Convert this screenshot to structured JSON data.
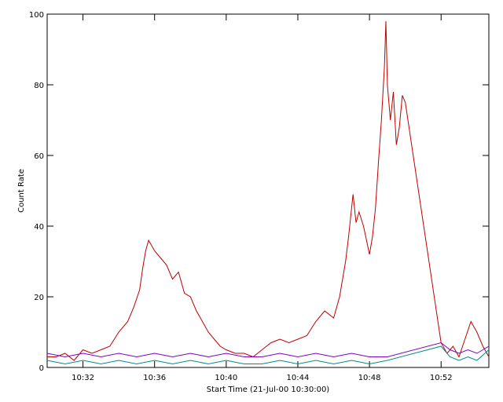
{
  "chart_data": {
    "type": "line",
    "xlabel": "Start Time (21-Jul-00 10:30:00)",
    "ylabel": "Count Rate",
    "xlim": [
      "10:30:00",
      "10:54:40"
    ],
    "ylim": [
      0,
      100
    ],
    "x_ticks": [
      "10:32",
      "10:36",
      "10:40",
      "10:44",
      "10:48",
      "10:52"
    ],
    "y_ticks": [
      0,
      20,
      40,
      60,
      80,
      100
    ],
    "grid": false,
    "legend": "none",
    "series": [
      {
        "color": "#c00000",
        "points": [
          [
            "10:30:00",
            3
          ],
          [
            "10:30:30",
            3
          ],
          [
            "10:31:00",
            4
          ],
          [
            "10:31:30",
            2
          ],
          [
            "10:32:00",
            5
          ],
          [
            "10:32:30",
            4
          ],
          [
            "10:33:00",
            5
          ],
          [
            "10:33:30",
            6
          ],
          [
            "10:34:00",
            10
          ],
          [
            "10:34:30",
            13
          ],
          [
            "10:34:50",
            17
          ],
          [
            "10:35:10",
            22
          ],
          [
            "10:35:20",
            28
          ],
          [
            "10:35:30",
            33
          ],
          [
            "10:35:40",
            36
          ],
          [
            "10:36:00",
            33
          ],
          [
            "10:36:20",
            31
          ],
          [
            "10:36:40",
            29
          ],
          [
            "10:37:00",
            25
          ],
          [
            "10:37:20",
            27
          ],
          [
            "10:37:40",
            21
          ],
          [
            "10:38:00",
            20
          ],
          [
            "10:38:20",
            16
          ],
          [
            "10:38:40",
            13
          ],
          [
            "10:39:00",
            10
          ],
          [
            "10:39:20",
            8
          ],
          [
            "10:39:40",
            6
          ],
          [
            "10:40:00",
            5
          ],
          [
            "10:40:30",
            4
          ],
          [
            "10:41:00",
            4
          ],
          [
            "10:41:30",
            3
          ],
          [
            "10:42:00",
            5
          ],
          [
            "10:42:30",
            7
          ],
          [
            "10:43:00",
            8
          ],
          [
            "10:43:30",
            7
          ],
          [
            "10:44:00",
            8
          ],
          [
            "10:44:30",
            9
          ],
          [
            "10:45:00",
            13
          ],
          [
            "10:45:30",
            16
          ],
          [
            "10:46:00",
            14
          ],
          [
            "10:46:20",
            20
          ],
          [
            "10:46:40",
            30
          ],
          [
            "10:46:50",
            37
          ],
          [
            "10:47:00",
            45
          ],
          [
            "10:47:05",
            49
          ],
          [
            "10:47:15",
            41
          ],
          [
            "10:47:25",
            44
          ],
          [
            "10:47:40",
            40
          ],
          [
            "10:48:00",
            32
          ],
          [
            "10:48:10",
            37
          ],
          [
            "10:48:20",
            45
          ],
          [
            "10:48:30",
            58
          ],
          [
            "10:48:40",
            70
          ],
          [
            "10:48:50",
            85
          ],
          [
            "10:48:55",
            98
          ],
          [
            "10:49:00",
            80
          ],
          [
            "10:49:10",
            70
          ],
          [
            "10:49:20",
            78
          ],
          [
            "10:49:30",
            63
          ],
          [
            "10:49:40",
            68
          ],
          [
            "10:49:50",
            77
          ],
          [
            "10:50:00",
            75
          ],
          [
            "10:52:00",
            7
          ],
          [
            "10:52:20",
            4
          ],
          [
            "10:52:40",
            6
          ],
          [
            "10:53:00",
            3
          ],
          [
            "10:53:20",
            8
          ],
          [
            "10:53:40",
            13
          ],
          [
            "10:54:00",
            10
          ],
          [
            "10:54:20",
            6
          ],
          [
            "10:54:40",
            3
          ]
        ]
      },
      {
        "color": "#8000c0",
        "points": [
          [
            "10:30:00",
            4
          ],
          [
            "10:31:00",
            3
          ],
          [
            "10:32:00",
            4
          ],
          [
            "10:33:00",
            3
          ],
          [
            "10:34:00",
            4
          ],
          [
            "10:35:00",
            3
          ],
          [
            "10:36:00",
            4
          ],
          [
            "10:37:00",
            3
          ],
          [
            "10:38:00",
            4
          ],
          [
            "10:39:00",
            3
          ],
          [
            "10:40:00",
            4
          ],
          [
            "10:41:00",
            3
          ],
          [
            "10:42:00",
            3
          ],
          [
            "10:43:00",
            4
          ],
          [
            "10:44:00",
            3
          ],
          [
            "10:45:00",
            4
          ],
          [
            "10:46:00",
            3
          ],
          [
            "10:47:00",
            4
          ],
          [
            "10:48:00",
            3
          ],
          [
            "10:49:00",
            3
          ],
          [
            "10:52:00",
            7
          ],
          [
            "10:52:30",
            5
          ],
          [
            "10:53:00",
            4
          ],
          [
            "10:53:30",
            5
          ],
          [
            "10:54:00",
            4
          ],
          [
            "10:54:40",
            6
          ]
        ]
      },
      {
        "color": "#008b8b",
        "points": [
          [
            "10:30:00",
            2
          ],
          [
            "10:31:00",
            1
          ],
          [
            "10:32:00",
            2
          ],
          [
            "10:33:00",
            1
          ],
          [
            "10:34:00",
            2
          ],
          [
            "10:35:00",
            1
          ],
          [
            "10:36:00",
            2
          ],
          [
            "10:37:00",
            1
          ],
          [
            "10:38:00",
            2
          ],
          [
            "10:39:00",
            1
          ],
          [
            "10:40:00",
            2
          ],
          [
            "10:41:00",
            1
          ],
          [
            "10:42:00",
            1
          ],
          [
            "10:43:00",
            2
          ],
          [
            "10:44:00",
            1
          ],
          [
            "10:45:00",
            2
          ],
          [
            "10:46:00",
            1
          ],
          [
            "10:47:00",
            2
          ],
          [
            "10:48:00",
            1
          ],
          [
            "10:49:00",
            2
          ],
          [
            "10:52:00",
            6
          ],
          [
            "10:52:30",
            3
          ],
          [
            "10:53:00",
            2
          ],
          [
            "10:53:30",
            3
          ],
          [
            "10:54:00",
            2
          ],
          [
            "10:54:40",
            5
          ]
        ]
      }
    ]
  }
}
